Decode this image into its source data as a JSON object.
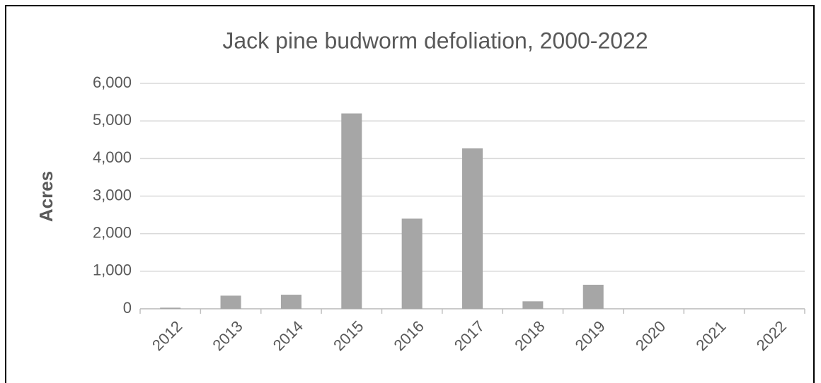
{
  "chart_data": {
    "type": "bar",
    "title": "Jack pine budworm defoliation, 2000-2022",
    "y_label": "Acres",
    "categories": [
      "2012",
      "2013",
      "2014",
      "2015",
      "2016",
      "2017",
      "2018",
      "2019",
      "2020",
      "2021",
      "2022"
    ],
    "values": [
      30,
      350,
      375,
      5200,
      2400,
      4270,
      200,
      640,
      0,
      0,
      0
    ],
    "color": "#a6a6a6",
    "ylim": [
      0,
      6000
    ],
    "yticks": [
      0,
      {
        "value": 1000,
        "label": "1,000"
      },
      {
        "value": 2000,
        "label": "2,000"
      },
      {
        "value": 3000,
        "label": "3,000"
      },
      {
        "value": 4000,
        "label": "4,000"
      },
      {
        "value": 5000,
        "label": "5,000"
      },
      {
        "value": 6000,
        "label": "6,000"
      }
    ],
    "grid": true
  }
}
